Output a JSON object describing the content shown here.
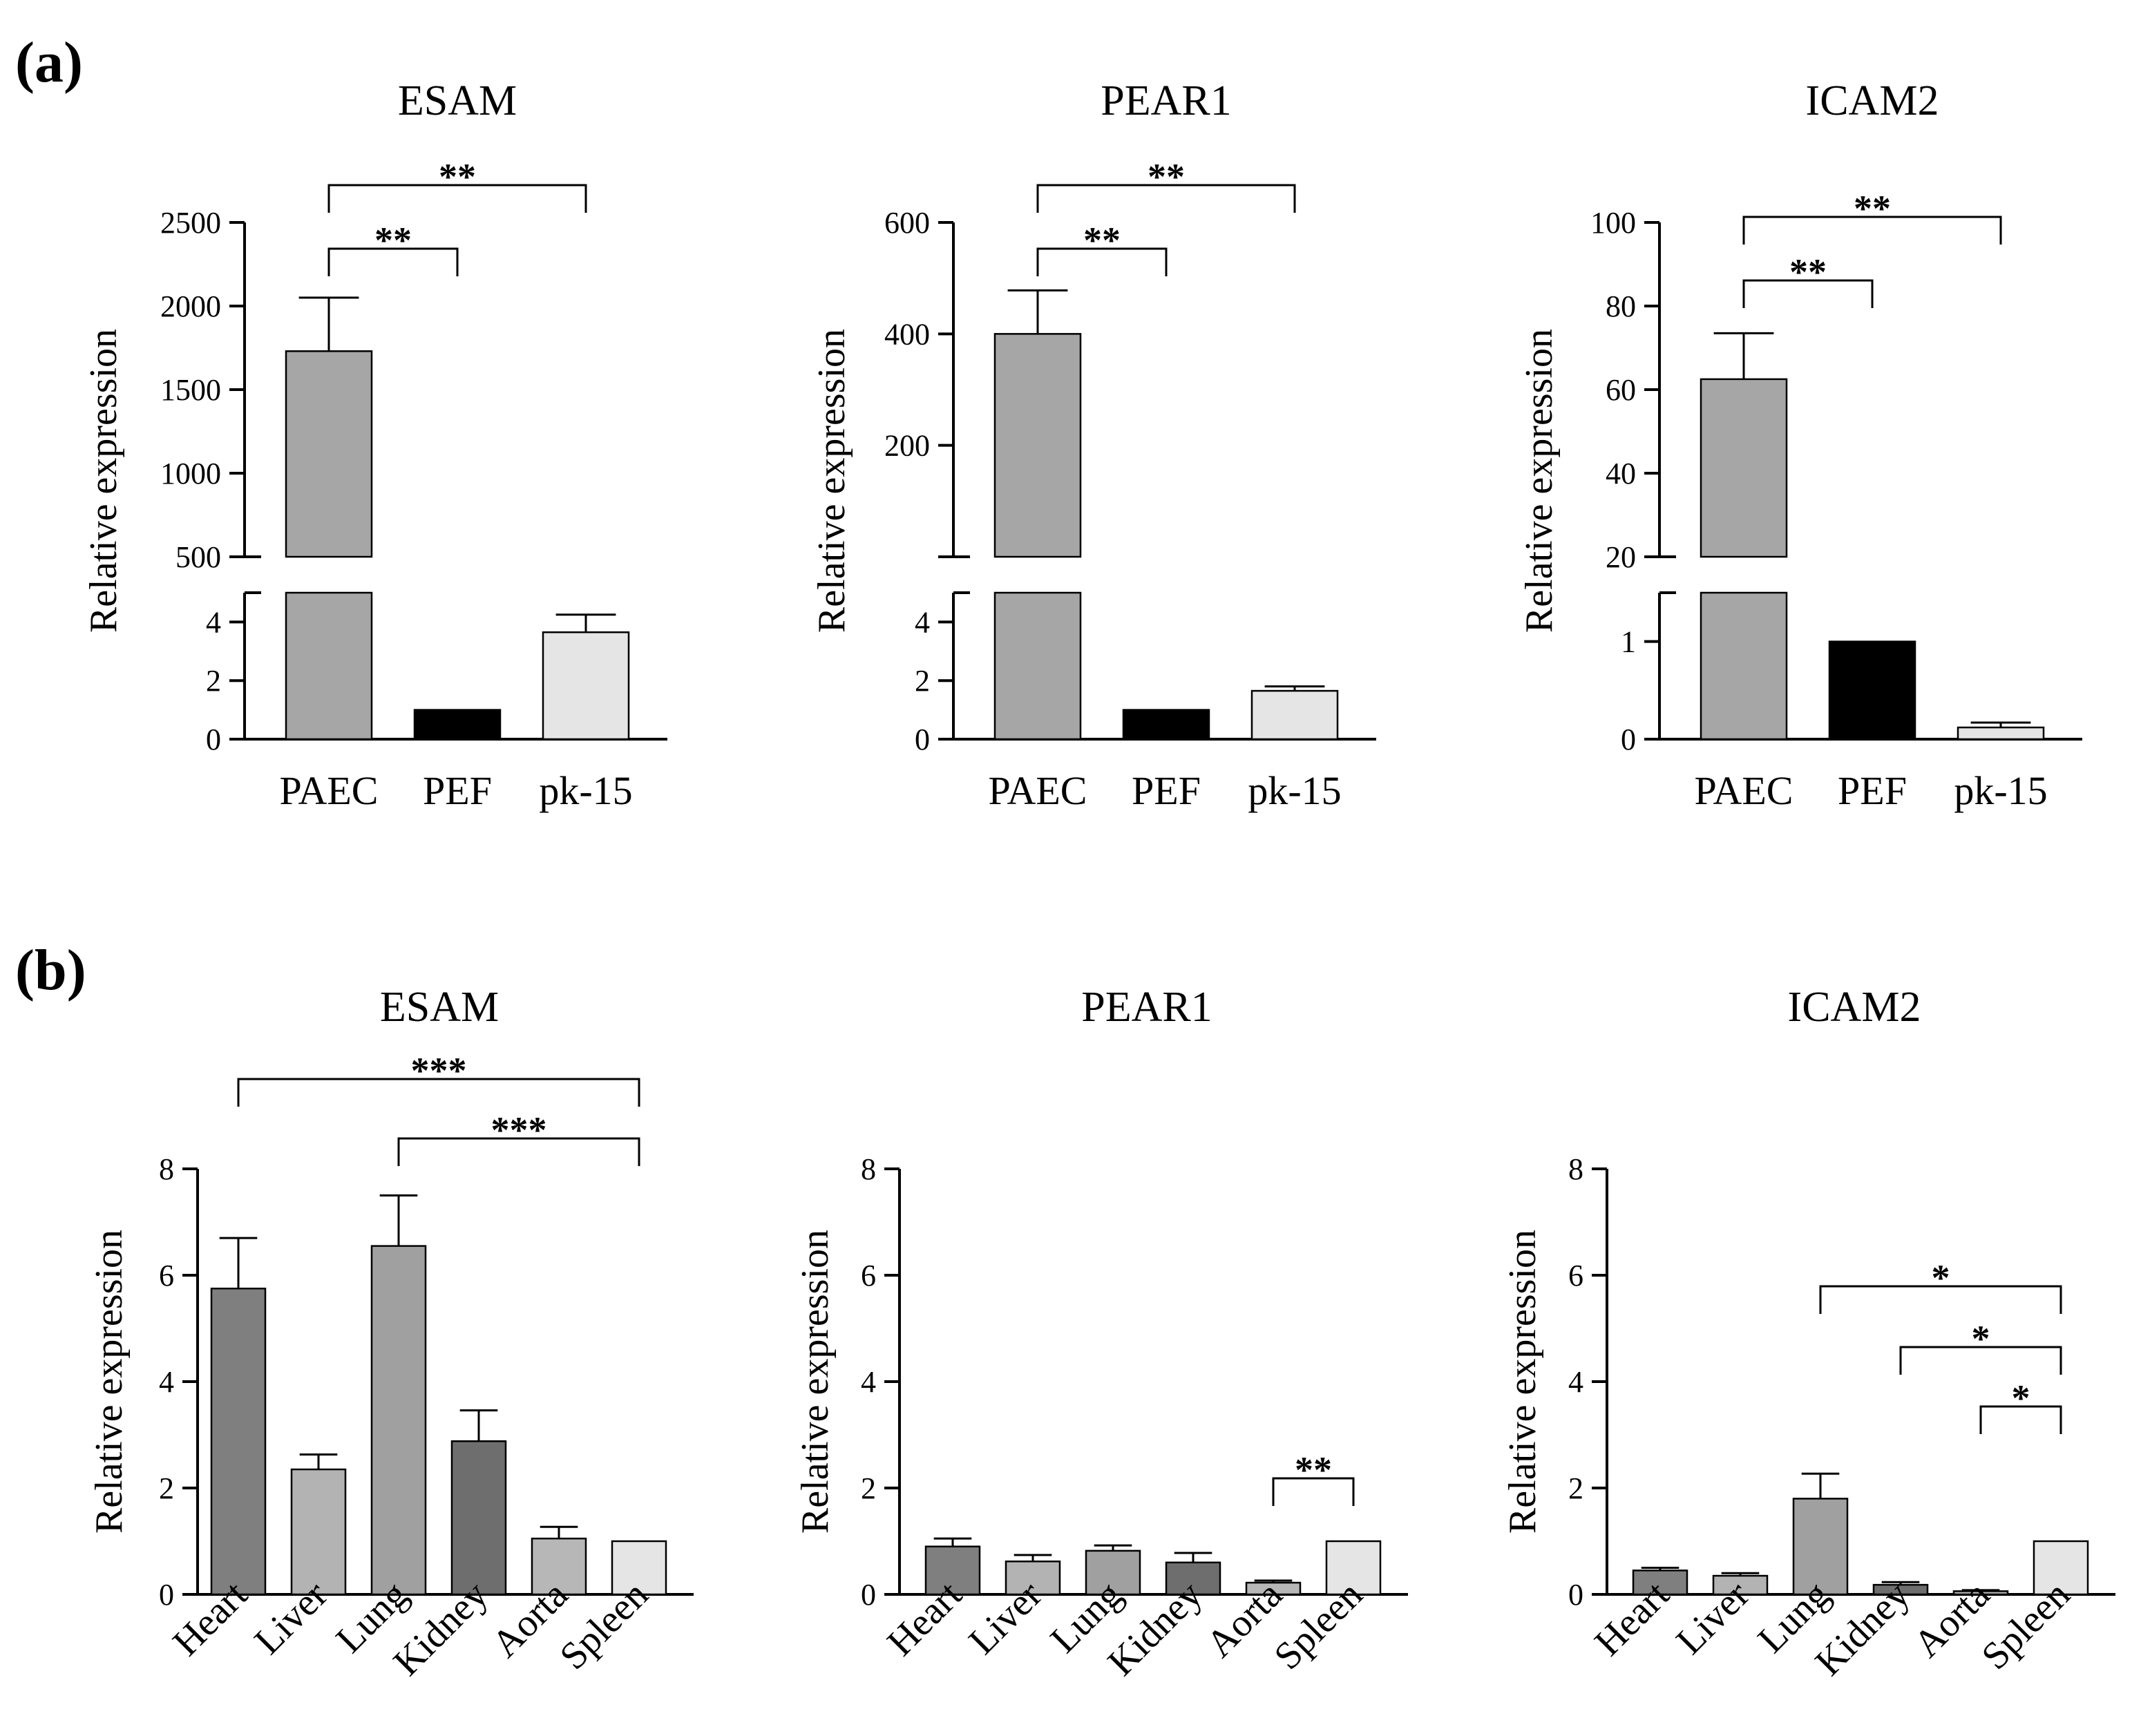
{
  "panels": [
    {
      "id": "a",
      "label": "(a)"
    },
    {
      "id": "b",
      "label": "(b)"
    }
  ],
  "chart_data": [
    {
      "type": "bar",
      "panel": "a",
      "title": "ESAM",
      "ylabel": "Relative expression",
      "xlabel": "",
      "categories": [
        "PAEC",
        "PEF",
        "pk-15"
      ],
      "values": [
        1730,
        1,
        3.65
      ],
      "errors": [
        320,
        0,
        0.6
      ],
      "colors": [
        "#a6a6a6",
        "#000000",
        "#e5e5e5"
      ],
      "axis_break": {
        "lower": {
          "ylim": [
            0,
            5
          ],
          "ticks": [
            0,
            2,
            4
          ],
          "tick_labels": [
            "0",
            "2",
            "4"
          ]
        },
        "upper": {
          "ylim": [
            500,
            2500
          ],
          "ticks": [
            500,
            1000,
            1500,
            2000,
            2500
          ],
          "tick_labels": [
            "500",
            "1000",
            "1500",
            "2000",
            "2500"
          ]
        }
      },
      "significance": [
        {
          "from": 0,
          "to": 1,
          "label": "**"
        },
        {
          "from": 0,
          "to": 2,
          "label": "**"
        }
      ]
    },
    {
      "type": "bar",
      "panel": "a",
      "title": "PEAR1",
      "ylabel": "Relative expression",
      "xlabel": "",
      "categories": [
        "PAEC",
        "PEF",
        "pk-15"
      ],
      "values": [
        400,
        1,
        1.65
      ],
      "errors": [
        78,
        0,
        0.15
      ],
      "colors": [
        "#a6a6a6",
        "#000000",
        "#e5e5e5"
      ],
      "axis_break": {
        "lower": {
          "ylim": [
            0,
            5
          ],
          "ticks": [
            0,
            2,
            4
          ],
          "tick_labels": [
            "0",
            "2",
            "4"
          ]
        },
        "upper": {
          "ylim": [
            0,
            600
          ],
          "ticks": [
            0,
            200,
            400,
            600
          ],
          "tick_labels": [
            "",
            "200",
            "400",
            "600"
          ]
        }
      },
      "significance": [
        {
          "from": 0,
          "to": 1,
          "label": "**"
        },
        {
          "from": 0,
          "to": 2,
          "label": "**"
        }
      ]
    },
    {
      "type": "bar",
      "panel": "a",
      "title": "ICAM2",
      "ylabel": "Relative expression",
      "xlabel": "",
      "categories": [
        "PAEC",
        "PEF",
        "pk-15"
      ],
      "values": [
        62.5,
        1,
        0.12
      ],
      "errors": [
        11,
        0,
        0.05
      ],
      "colors": [
        "#a6a6a6",
        "#000000",
        "#e5e5e5"
      ],
      "axis_break": {
        "lower": {
          "ylim": [
            0,
            1.5
          ],
          "ticks": [
            0,
            1
          ],
          "tick_labels": [
            "0",
            "1"
          ]
        },
        "upper": {
          "ylim": [
            20,
            100
          ],
          "ticks": [
            20,
            40,
            60,
            80,
            100
          ],
          "tick_labels": [
            "20",
            "40",
            "60",
            "80",
            "100"
          ]
        }
      },
      "significance": [
        {
          "from": 0,
          "to": 1,
          "label": "**"
        },
        {
          "from": 0,
          "to": 2,
          "label": "**"
        }
      ]
    },
    {
      "type": "bar",
      "panel": "b",
      "title": "ESAM",
      "ylabel": "Relative expression",
      "xlabel": "",
      "categories": [
        "Heart",
        "Liver",
        "Lung",
        "Kidney",
        "Aorta",
        "Spleen"
      ],
      "values": [
        5.75,
        2.35,
        6.55,
        2.88,
        1.05,
        1.0
      ],
      "errors": [
        0.95,
        0.28,
        0.95,
        0.58,
        0.22,
        0
      ],
      "colors": [
        "#7f7f7f",
        "#b3b3b3",
        "#a0a0a0",
        "#6e6e6e",
        "#b7b7b7",
        "#e5e5e5"
      ],
      "ylim": [
        0,
        8
      ],
      "ticks": [
        0,
        2,
        4,
        6,
        8
      ],
      "tick_labels": [
        "0",
        "2",
        "4",
        "6",
        "8"
      ],
      "significance": [
        {
          "from": 0,
          "to": 5,
          "label": "***"
        },
        {
          "from": 2,
          "to": 5,
          "label": "***"
        }
      ]
    },
    {
      "type": "bar",
      "panel": "b",
      "title": "PEAR1",
      "ylabel": "Relative expression",
      "xlabel": "",
      "categories": [
        "Heart",
        "Liver",
        "Lung",
        "Kidney",
        "Aorta",
        "Spleen"
      ],
      "values": [
        0.9,
        0.62,
        0.82,
        0.6,
        0.22,
        1.0
      ],
      "errors": [
        0.15,
        0.12,
        0.1,
        0.18,
        0.04,
        0
      ],
      "colors": [
        "#7f7f7f",
        "#b3b3b3",
        "#a0a0a0",
        "#6e6e6e",
        "#b7b7b7",
        "#e5e5e5"
      ],
      "ylim": [
        0,
        8
      ],
      "ticks": [
        0,
        2,
        4,
        6,
        8
      ],
      "tick_labels": [
        "0",
        "2",
        "4",
        "6",
        "8"
      ],
      "significance": [
        {
          "from": 4,
          "to": 5,
          "label": "**"
        }
      ]
    },
    {
      "type": "bar",
      "panel": "b",
      "title": "ICAM2",
      "ylabel": "Relative expression",
      "xlabel": "",
      "categories": [
        "Heart",
        "Liver",
        "Lung",
        "Kidney",
        "Aorta",
        "Spleen"
      ],
      "values": [
        0.45,
        0.35,
        1.8,
        0.18,
        0.06,
        1.0
      ],
      "errors": [
        0.05,
        0.05,
        0.47,
        0.05,
        0.02,
        0
      ],
      "colors": [
        "#7f7f7f",
        "#b3b3b3",
        "#a0a0a0",
        "#6e6e6e",
        "#b7b7b7",
        "#e5e5e5"
      ],
      "ylim": [
        0,
        8
      ],
      "ticks": [
        0,
        2,
        4,
        6,
        8
      ],
      "tick_labels": [
        "0",
        "2",
        "4",
        "6",
        "8"
      ],
      "significance": [
        {
          "from": 2,
          "to": 5,
          "label": "*"
        },
        {
          "from": 3,
          "to": 5,
          "label": "*"
        },
        {
          "from": 4,
          "to": 5,
          "label": "*"
        }
      ]
    }
  ]
}
